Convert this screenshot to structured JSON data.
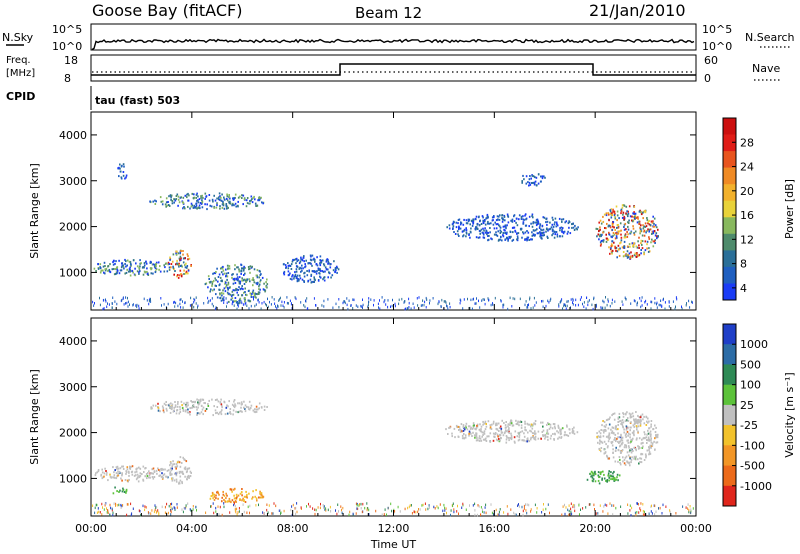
{
  "header": {
    "station": "Goose Bay (fitACF)",
    "beam": "Beam 12",
    "date": "21/Jan/2010"
  },
  "panels": {
    "nsky_label": "N.Sky",
    "nsky_ticks": [
      "10^5",
      "10^0"
    ],
    "nsearch_label": "N.Search",
    "nsearch_ticks": [
      "10^5",
      "10^0"
    ],
    "freq_label_1": "Freq.",
    "freq_label_2": "[MHz]",
    "freq_ticks": [
      "18",
      "8"
    ],
    "nave_label": "Nave",
    "nave_ticks": [
      "60",
      "0"
    ],
    "cpid_label": "CPID",
    "cpid_text": "tau (fast) 503"
  },
  "chart_data": [
    {
      "type": "heatmap",
      "name": "power",
      "ylabel": "Slant Range [km]",
      "xlabel": "",
      "x_ticks": [
        "00:00",
        "04:00",
        "08:00",
        "12:00",
        "16:00",
        "20:00",
        "00:00"
      ],
      "y_ticks": [
        "4000",
        "3000",
        "2000",
        "1000"
      ],
      "ylim": [
        180,
        4500
      ],
      "colorbar": {
        "label": "Power [dB]",
        "ticks": [
          "28",
          "24",
          "20",
          "16",
          "12",
          "8",
          "4"
        ],
        "colors": [
          "#1a3cf5",
          "#1f5fc0",
          "#2a6f98",
          "#4e8b6c",
          "#88b85e",
          "#e8d23a",
          "#f2b12c",
          "#ef8a24",
          "#e8541e",
          "#e01c17",
          "#cc0f0f"
        ]
      },
      "patches": [
        {
          "t0": 0.0,
          "t1": 3.2,
          "r0": 950,
          "r1": 1300,
          "level": "mid"
        },
        {
          "t0": 2.3,
          "t1": 7.0,
          "r0": 2400,
          "r1": 2750,
          "level": "mid"
        },
        {
          "t0": 1.0,
          "t1": 1.4,
          "r0": 3000,
          "r1": 3400,
          "level": "low"
        },
        {
          "t0": 3.0,
          "t1": 4.0,
          "r0": 900,
          "r1": 1500,
          "level": "high"
        },
        {
          "t0": 4.5,
          "t1": 7.0,
          "r0": 350,
          "r1": 1200,
          "level": "mid"
        },
        {
          "t0": 7.5,
          "t1": 9.8,
          "r0": 800,
          "r1": 1400,
          "level": "low"
        },
        {
          "t0": 14.0,
          "t1": 19.3,
          "r0": 1700,
          "r1": 2300,
          "level": "low"
        },
        {
          "t0": 20.0,
          "t1": 22.5,
          "r0": 1300,
          "r1": 2500,
          "level": "high"
        },
        {
          "t0": 17.0,
          "t1": 18.0,
          "r0": 2900,
          "r1": 3200,
          "level": "low"
        }
      ]
    },
    {
      "type": "heatmap",
      "name": "velocity",
      "ylabel": "Slant Range [km]",
      "xlabel": "Time UT",
      "x_ticks": [
        "00:00",
        "04:00",
        "08:00",
        "12:00",
        "16:00",
        "20:00",
        "00:00"
      ],
      "y_ticks": [
        "4000",
        "3000",
        "2000",
        "1000"
      ],
      "ylim": [
        180,
        4500
      ],
      "colorbar": {
        "label": "Velocity [m s⁻¹]",
        "ticks": [
          "1000",
          "500",
          "100",
          "25",
          "-25",
          "-100",
          "-500",
          "-1000"
        ],
        "colors": [
          "#1f3fc8",
          "#2c6ca6",
          "#2e8a55",
          "#5cc23a",
          "#c0c0c0",
          "#f2c22c",
          "#f29626",
          "#ec6a1a",
          "#e0261c"
        ]
      },
      "patches": [
        {
          "t0": 0.0,
          "t1": 3.2,
          "r0": 950,
          "r1": 1300,
          "level": "ground"
        },
        {
          "t0": 2.3,
          "t1": 7.0,
          "r0": 2400,
          "r1": 2750,
          "level": "ground"
        },
        {
          "t0": 3.0,
          "t1": 4.0,
          "r0": 900,
          "r1": 1500,
          "level": "ground"
        },
        {
          "t0": 4.5,
          "t1": 7.0,
          "r0": 500,
          "r1": 800,
          "level": "neg"
        },
        {
          "t0": 14.0,
          "t1": 19.3,
          "r0": 1800,
          "r1": 2300,
          "level": "ground"
        },
        {
          "t0": 20.0,
          "t1": 22.5,
          "r0": 1300,
          "r1": 2500,
          "level": "ground"
        },
        {
          "t0": 0.8,
          "t1": 1.4,
          "r0": 650,
          "r1": 850,
          "level": "pos"
        },
        {
          "t0": 19.5,
          "t1": 21.0,
          "r0": 900,
          "r1": 1200,
          "level": "pos"
        }
      ]
    }
  ]
}
